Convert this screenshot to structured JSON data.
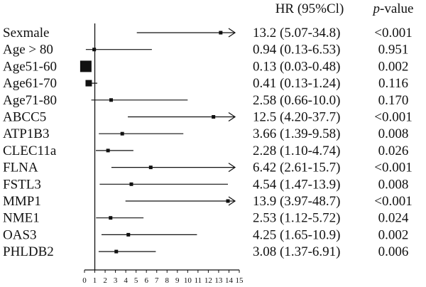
{
  "chart_data": {
    "type": "forest",
    "columns": {
      "hr_header": "HR (95%Cl)",
      "p_header_italic": "p",
      "p_header_rest": "-value"
    },
    "xlim": [
      0,
      15
    ],
    "xticks": [
      0,
      1,
      2,
      3,
      4,
      5,
      6,
      7,
      8,
      9,
      10,
      11,
      12,
      13,
      14,
      15
    ],
    "reference_line": 1,
    "rows": [
      {
        "label": "Sexmale",
        "hr": 13.2,
        "lo": 5.07,
        "hi": 34.8,
        "hr_text": "13.2 (5.07-34.8)",
        "p": "<0.001"
      },
      {
        "label": "Age > 80",
        "hr": 0.94,
        "lo": 0.13,
        "hi": 6.53,
        "hr_text": "0.94 (0.13-6.53)",
        "p": "0.951"
      },
      {
        "label": "Age51-60",
        "hr": 0.13,
        "lo": 0.03,
        "hi": 0.48,
        "hr_text": "0.13 (0.03-0.48)",
        "p": "0.002"
      },
      {
        "label": "Age61-70",
        "hr": 0.41,
        "lo": 0.13,
        "hi": 1.24,
        "hr_text": "0.41 (0.13-1.24)",
        "p": "0.116"
      },
      {
        "label": "Age71-80",
        "hr": 2.58,
        "lo": 0.66,
        "hi": 10.0,
        "hr_text": "2.58 (0.66-10.0)",
        "p": "0.170"
      },
      {
        "label": "ABCC5",
        "hr": 12.5,
        "lo": 4.2,
        "hi": 37.7,
        "hr_text": "12.5 (4.20-37.7)",
        "p": "<0.001"
      },
      {
        "label": "ATP1B3",
        "hr": 3.66,
        "lo": 1.39,
        "hi": 9.58,
        "hr_text": "3.66 (1.39-9.58)",
        "p": "0.008"
      },
      {
        "label": "CLEC11a",
        "hr": 2.28,
        "lo": 1.1,
        "hi": 4.74,
        "hr_text": "2.28 (1.10-4.74)",
        "p": "0.026"
      },
      {
        "label": "FLNA",
        "hr": 6.42,
        "lo": 2.61,
        "hi": 15.7,
        "hr_text": "6.42 (2.61-15.7)",
        "p": "<0.001"
      },
      {
        "label": "FSTL3",
        "hr": 4.54,
        "lo": 1.47,
        "hi": 13.9,
        "hr_text": "4.54 (1.47-13.9)",
        "p": "0.008"
      },
      {
        "label": "MMP1",
        "hr": 13.9,
        "lo": 3.97,
        "hi": 48.7,
        "hr_text": "13.9 (3.97-48.7)",
        "p": "<0.001"
      },
      {
        "label": "NME1",
        "hr": 2.53,
        "lo": 1.12,
        "hi": 5.72,
        "hr_text": "2.53 (1.12-5.72)",
        "p": "0.024"
      },
      {
        "label": "OAS3",
        "hr": 4.25,
        "lo": 1.65,
        "hi": 10.9,
        "hr_text": "4.25 (1.65-10.9)",
        "p": "0.002"
      },
      {
        "label": "PHLDB2",
        "hr": 3.08,
        "lo": 1.37,
        "hi": 6.91,
        "hr_text": "3.08 (1.37-6.91)",
        "p": "0.006"
      }
    ],
    "colors": {
      "ink": "#111111"
    }
  }
}
